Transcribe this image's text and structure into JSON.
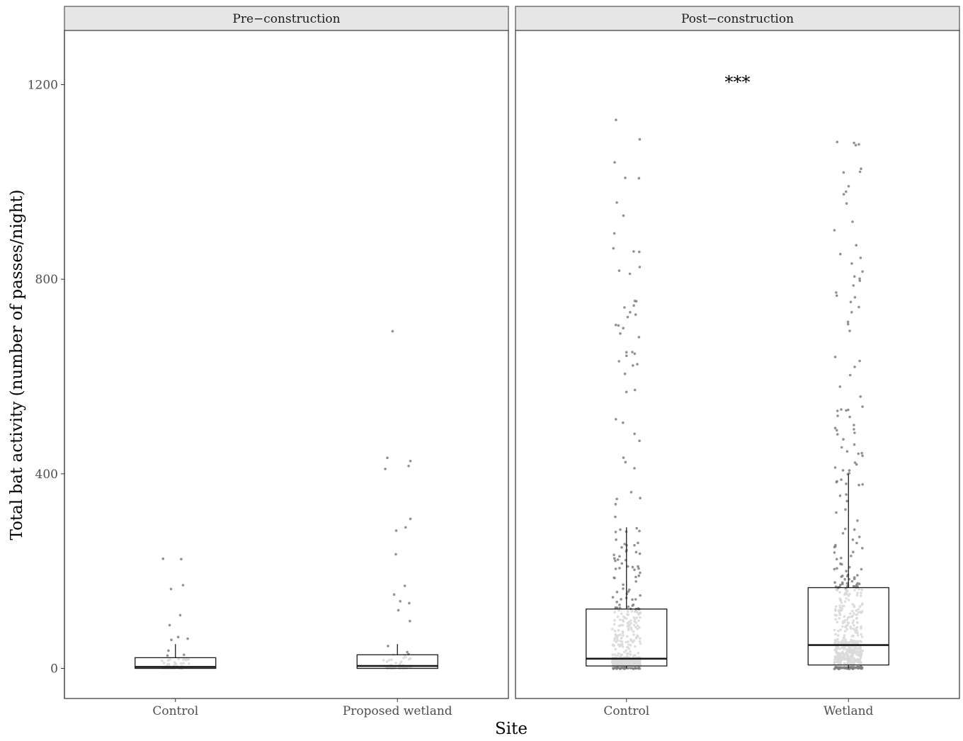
{
  "chart_data": {
    "type": "boxplot",
    "xlabel": "Site",
    "ylabel": "Total bat activity (number of passes/night)",
    "ylim": [
      -62,
      1310
    ],
    "yticks": [
      0,
      400,
      800,
      1200
    ],
    "grid": false,
    "panels": [
      {
        "title": "Pre−construction",
        "annotation": "",
        "categories": [
          {
            "name": "Control",
            "box": {
              "whisker_low": 0,
              "q1": 0,
              "median": 3,
              "q3": 22,
              "whisker_high": 50
            },
            "outlier_max": 225,
            "n_points": 70
          },
          {
            "name": "Proposed wetland",
            "box": {
              "whisker_low": 0,
              "q1": 0,
              "median": 5,
              "q3": 28,
              "whisker_high": 50
            },
            "outlier_max": 692,
            "n_points": 80
          }
        ]
      },
      {
        "title": "Post−construction",
        "annotation": "***",
        "categories": [
          {
            "name": "Control",
            "box": {
              "whisker_low": 0,
              "q1": 5,
              "median": 20,
              "q3": 122,
              "whisker_high": 290
            },
            "outlier_max": 1128,
            "n_points": 520
          },
          {
            "name": "Wetland",
            "box": {
              "whisker_low": 0,
              "q1": 7,
              "median": 48,
              "q3": 166,
              "whisker_high": 400
            },
            "outlier_max": 1082,
            "n_points": 560
          }
        ]
      }
    ]
  },
  "colors": {
    "point_dark": "#7f7f7f",
    "point_light": "#d9d9d9",
    "strip_fill": "#e6e6e6",
    "panel_border": "#333333",
    "box_line": "#1a1a1a"
  }
}
